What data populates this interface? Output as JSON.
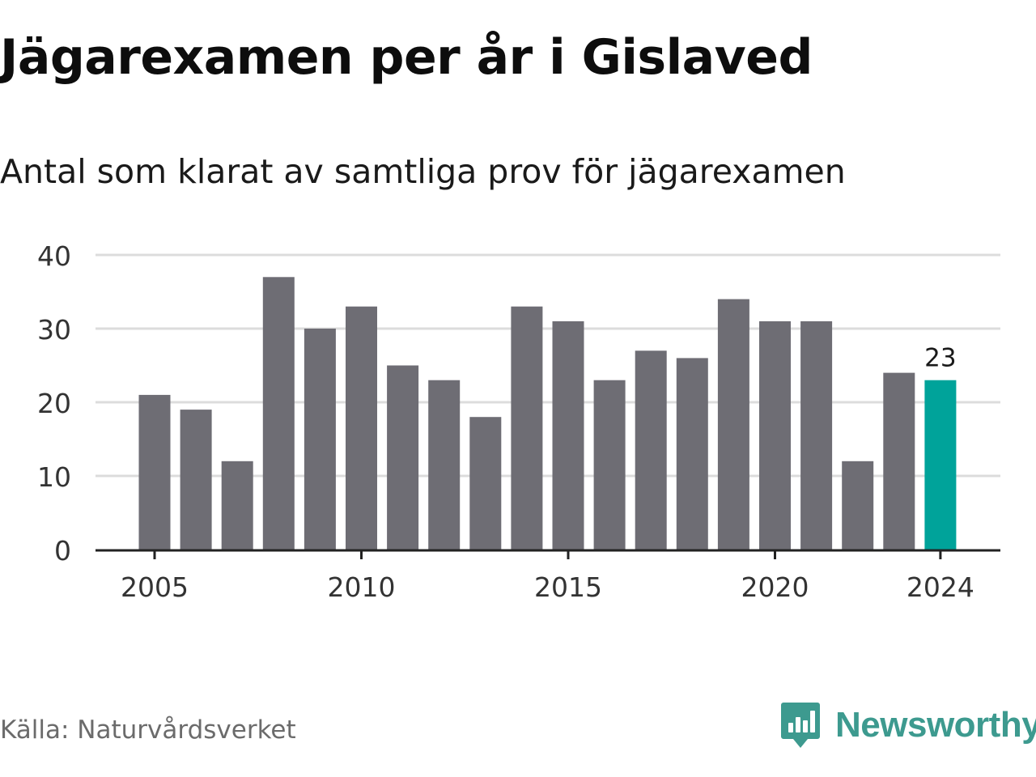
{
  "header": {
    "title": "Jägarexamen per år i Gislaved",
    "subtitle": "Antal som klarat av samtliga prov för jägarexamen"
  },
  "footer": {
    "source": "Källa: Naturvårdsverket",
    "brand": "Newsworthy",
    "brand_icon": "newsworthy-logo-icon"
  },
  "colors": {
    "bar": "#6e6d74",
    "highlight": "#00a39a",
    "grid": "#dcdcdc",
    "axis": "#222222",
    "brand": "#3d9a8f"
  },
  "chart_data": {
    "type": "bar",
    "title": "Jägarexamen per år i Gislaved",
    "subtitle": "Antal som klarat av samtliga prov för jägarexamen",
    "x": [
      2005,
      2006,
      2007,
      2008,
      2009,
      2010,
      2011,
      2012,
      2013,
      2014,
      2015,
      2016,
      2017,
      2018,
      2019,
      2020,
      2021,
      2022,
      2023,
      2024
    ],
    "values": [
      21,
      19,
      12,
      37,
      30,
      33,
      25,
      23,
      18,
      33,
      31,
      23,
      27,
      26,
      34,
      31,
      31,
      12,
      24,
      23
    ],
    "highlight": 2024,
    "highlight_label": "23",
    "x_ticks": [
      2005,
      2010,
      2015,
      2020,
      2024
    ],
    "y_ticks": [
      0,
      10,
      20,
      30,
      40
    ],
    "ylim": [
      0,
      40
    ],
    "grid": true,
    "legend": false,
    "xlabel": "",
    "ylabel": ""
  }
}
